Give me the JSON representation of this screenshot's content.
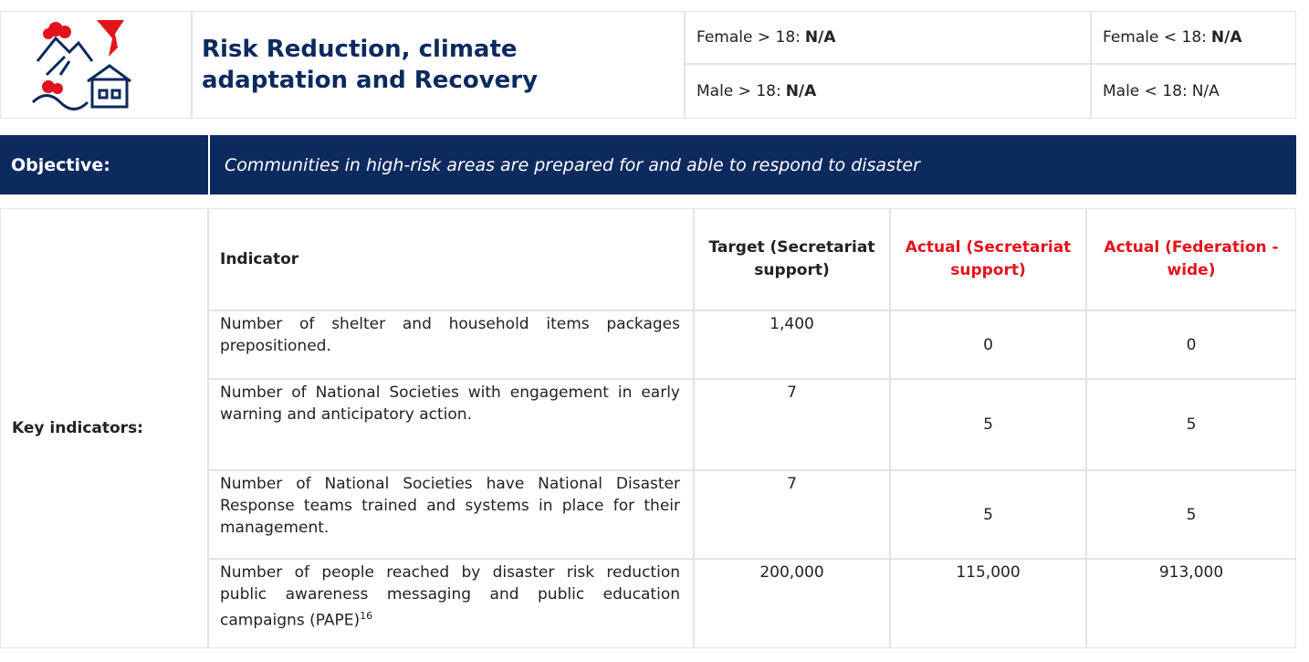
{
  "header": {
    "title": "Risk Reduction, climate adaptation and Recovery",
    "demographics": [
      {
        "label": "Female > 18:",
        "value": "N/A",
        "value_bold": true
      },
      {
        "label": "Female < 18:",
        "value": "N/A",
        "value_bold": true
      },
      {
        "label": "Male > 18:",
        "value": "N/A",
        "value_bold": true
      },
      {
        "label": "Male < 18:",
        "value": "N/A",
        "value_bold": false
      }
    ]
  },
  "objective": {
    "label": "Objective:",
    "text": "Communities in high-risk areas are prepared for and able to respond to disaster"
  },
  "indicators": {
    "label": "Key indicators:",
    "columns": [
      "Indicator",
      "Target (Secretariat support)",
      "Actual (Secretariat support)",
      "Actual (Federation - wide)"
    ],
    "rows": [
      {
        "indicator": "Number of shelter and household items packages prepositioned.",
        "target": "1,400",
        "actual_secretariat": "0",
        "actual_federation": "0"
      },
      {
        "indicator": "Number of National Societies with engagement in early warning and anticipatory action.",
        "target": "7",
        "actual_secretariat": "5",
        "actual_federation": "5"
      },
      {
        "indicator": "Number of National Societies have National Disaster Response teams trained and systems in place for their management.",
        "target": "7",
        "actual_secretariat": "5",
        "actual_federation": "5"
      },
      {
        "indicator": "Number of people reached by disaster risk reduction public awareness messaging and public education campaigns (PAPE)",
        "footnote": "16",
        "target": "200,000",
        "actual_secretariat": "115,000",
        "actual_federation": "913,000"
      }
    ]
  }
}
